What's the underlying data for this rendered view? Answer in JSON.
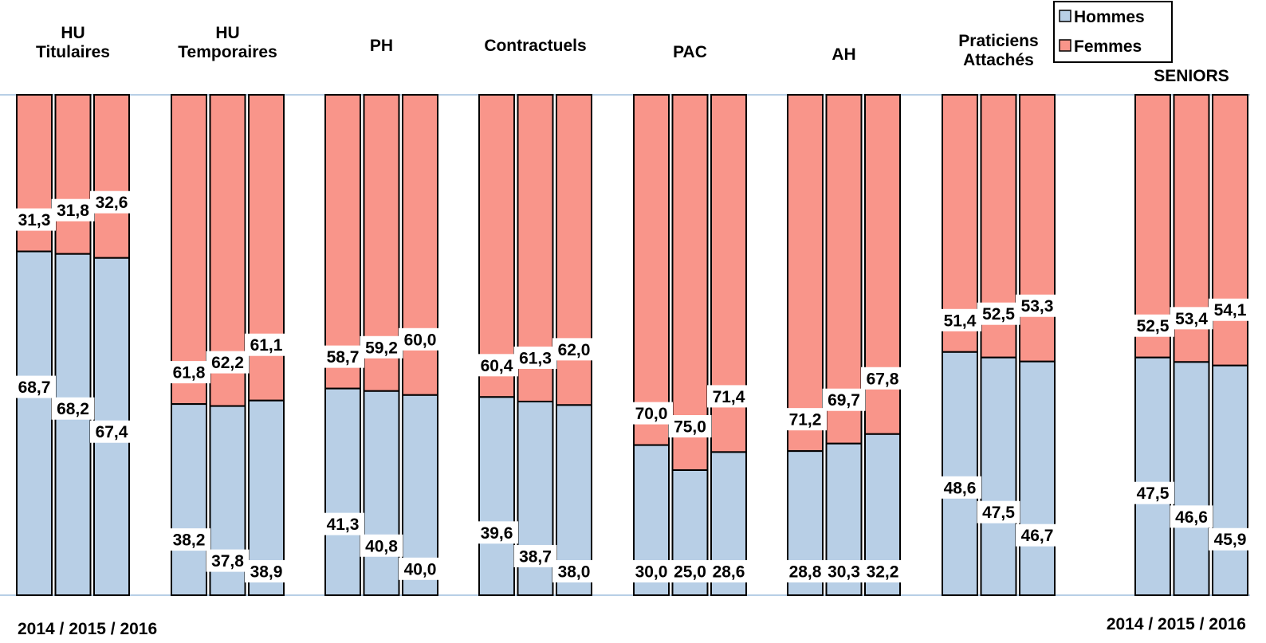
{
  "chart_data": {
    "type": "bar",
    "stacked": true,
    "percent_scale": true,
    "ylim": [
      0,
      100
    ],
    "series": [
      {
        "name": "Hommes",
        "color": "#b8cfe6"
      },
      {
        "name": "Femmes",
        "color": "#f9958a"
      }
    ],
    "legend": {
      "placement": "top-right",
      "entries": [
        "Hommes",
        "Femmes"
      ]
    },
    "groups": [
      {
        "label": [
          "HU",
          "Titulaires"
        ],
        "hommes": [
          68.7,
          68.2,
          67.4
        ],
        "femmes": [
          31.3,
          31.8,
          32.6
        ],
        "hommes_labels": [
          "68,7",
          "68,2",
          "67,4"
        ],
        "femmes_labels": [
          "31,3",
          "31,8",
          "32,6"
        ]
      },
      {
        "label": [
          "HU",
          "Temporaires"
        ],
        "hommes": [
          38.2,
          37.8,
          38.9
        ],
        "femmes": [
          61.8,
          62.2,
          61.1
        ],
        "hommes_labels": [
          "38,2",
          "37,8",
          "38,9"
        ],
        "femmes_labels": [
          "61,8",
          "62,2",
          "61,1"
        ]
      },
      {
        "label": [
          "PH"
        ],
        "hommes": [
          41.3,
          40.8,
          40.0
        ],
        "femmes": [
          58.7,
          59.2,
          60.0
        ],
        "hommes_labels": [
          "41,3",
          "40,8",
          "40,0"
        ],
        "femmes_labels": [
          "58,7",
          "59,2",
          "60,0"
        ]
      },
      {
        "label": [
          "Contractuels"
        ],
        "hommes": [
          39.6,
          38.7,
          38.0
        ],
        "femmes": [
          60.4,
          61.3,
          62.0
        ],
        "hommes_labels": [
          "39,6",
          "38,7",
          "38,0"
        ],
        "femmes_labels": [
          "60,4",
          "61,3",
          "62,0"
        ]
      },
      {
        "label": [
          "PAC"
        ],
        "hommes": [
          30.0,
          25.0,
          28.6
        ],
        "femmes": [
          70.0,
          75.0,
          71.4
        ],
        "hommes_labels": [
          "30,0",
          "25,0",
          "28,6"
        ],
        "femmes_labels": [
          "70,0",
          "75,0",
          "71,4"
        ]
      },
      {
        "label": [
          "AH"
        ],
        "hommes": [
          28.8,
          30.3,
          32.2
        ],
        "femmes": [
          71.2,
          69.7,
          67.8
        ],
        "hommes_labels": [
          "28,8",
          "30,3",
          "32,2"
        ],
        "femmes_labels": [
          "71,2",
          "69,7",
          "67,8"
        ]
      },
      {
        "label": [
          "Praticiens",
          "Attachés"
        ],
        "hommes": [
          48.6,
          47.5,
          46.7
        ],
        "femmes": [
          51.4,
          52.5,
          53.3
        ],
        "hommes_labels": [
          "48,6",
          "47,5",
          "46,7"
        ],
        "femmes_labels": [
          "51,4",
          "52,5",
          "53,3"
        ]
      },
      {
        "label": [
          "SENIORS"
        ],
        "hommes": [
          47.5,
          46.6,
          45.9
        ],
        "femmes": [
          52.5,
          53.4,
          54.1
        ],
        "hommes_labels": [
          "47,5",
          "46,6",
          "45,9"
        ],
        "femmes_labels": [
          "52,5",
          "53,4",
          "54,1"
        ]
      }
    ],
    "footer_left": "2014 / 2015 / 2016",
    "footer_right": "2014 / 2015 / 2016"
  }
}
